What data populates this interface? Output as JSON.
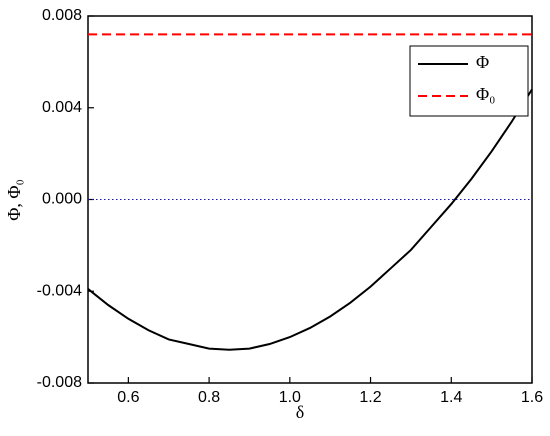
{
  "chart_data": {
    "type": "line",
    "xlabel": "δ",
    "ylabel": "Φ, Φ₀",
    "xlim": [
      0.5,
      1.6
    ],
    "ylim": [
      -0.008,
      0.008
    ],
    "xticks": [
      0.6,
      0.8,
      {
        "value": 1,
        "label": "1.0"
      },
      1.2,
      1.4,
      1.6
    ],
    "yticks": [
      -0.008,
      -0.004,
      {
        "value": 0,
        "label": "0.000"
      },
      0.004,
      0.008
    ],
    "legend": "upper right",
    "reference_lines": [
      {
        "value": 0,
        "color": "#1a1a9a",
        "style": "dotted"
      }
    ],
    "series": [
      {
        "name": "Φ",
        "color": "#000000",
        "style": "solid",
        "x": [
          0.5,
          0.55,
          0.6,
          0.65,
          0.7,
          0.75,
          0.8,
          0.85,
          0.9,
          0.95,
          1.0,
          1.05,
          1.1,
          1.15,
          1.2,
          1.25,
          1.3,
          1.35,
          1.4,
          1.45,
          1.5,
          1.55,
          1.6
        ],
        "values": [
          -0.0039,
          -0.0046,
          -0.0052,
          -0.0057,
          -0.0061,
          -0.0063,
          -0.0065,
          -0.00655,
          -0.0065,
          -0.0063,
          -0.006,
          -0.0056,
          -0.0051,
          -0.0045,
          -0.0038,
          -0.003,
          -0.0022,
          -0.0012,
          -0.0002,
          0.0009,
          0.0021,
          0.0034,
          0.0048
        ]
      },
      {
        "name": "Φ₀",
        "color": "#ff0000",
        "style": "dashed",
        "x": [
          0.5,
          1.6
        ],
        "values": [
          0.0072,
          0.0072
        ]
      }
    ]
  }
}
